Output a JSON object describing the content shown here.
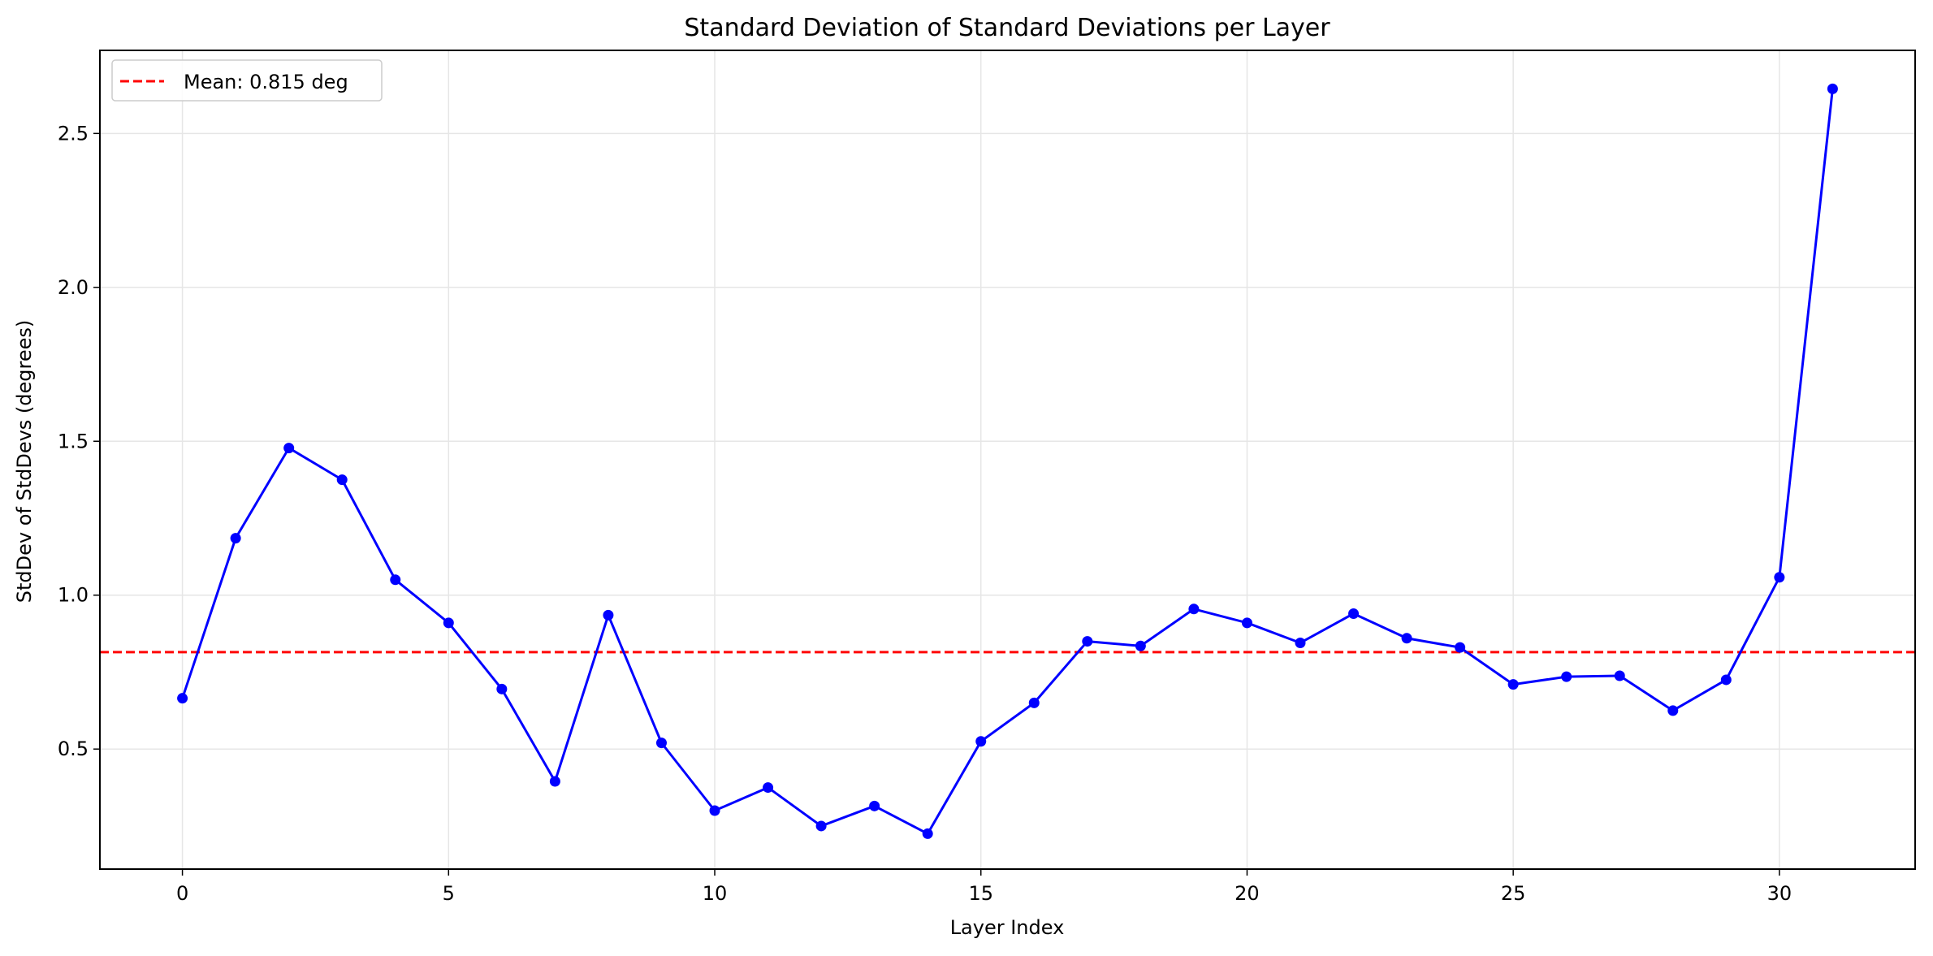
{
  "chart_data": {
    "type": "line",
    "title": "Standard Deviation of Standard Deviations per Layer",
    "xlabel": "Layer Index",
    "ylabel": "StdDev of StdDevs (degrees)",
    "xlim": [
      -1.55,
      32.55
    ],
    "ylim": [
      0.11,
      2.77
    ],
    "xticks": [
      0,
      5,
      10,
      15,
      20,
      25,
      30
    ],
    "yticks": [
      0.5,
      1.0,
      1.5,
      2.0,
      2.5
    ],
    "ytick_labels": [
      "0.5",
      "1.0",
      "1.5",
      "2.0",
      "2.5"
    ],
    "grid": true,
    "legend_position": "top-left",
    "series": [
      {
        "color": "#0000ff",
        "marker": "circle",
        "x": [
          0,
          1,
          2,
          3,
          4,
          5,
          6,
          7,
          8,
          9,
          10,
          11,
          12,
          13,
          14,
          15,
          16,
          17,
          18,
          19,
          20,
          21,
          22,
          23,
          24,
          25,
          26,
          27,
          28,
          29,
          30,
          31
        ],
        "values": [
          0.665,
          1.185,
          1.478,
          1.375,
          1.05,
          0.91,
          0.695,
          0.395,
          0.935,
          0.52,
          0.3,
          0.375,
          0.25,
          0.315,
          0.225,
          0.525,
          0.65,
          0.85,
          0.835,
          0.955,
          0.91,
          0.845,
          0.94,
          0.86,
          0.83,
          0.71,
          0.735,
          0.738,
          0.625,
          0.725,
          1.058,
          2.645
        ]
      }
    ],
    "reference_line": {
      "value": 0.815,
      "color": "#ff0000",
      "style": "dashed",
      "label": "Mean: 0.815 deg"
    }
  }
}
